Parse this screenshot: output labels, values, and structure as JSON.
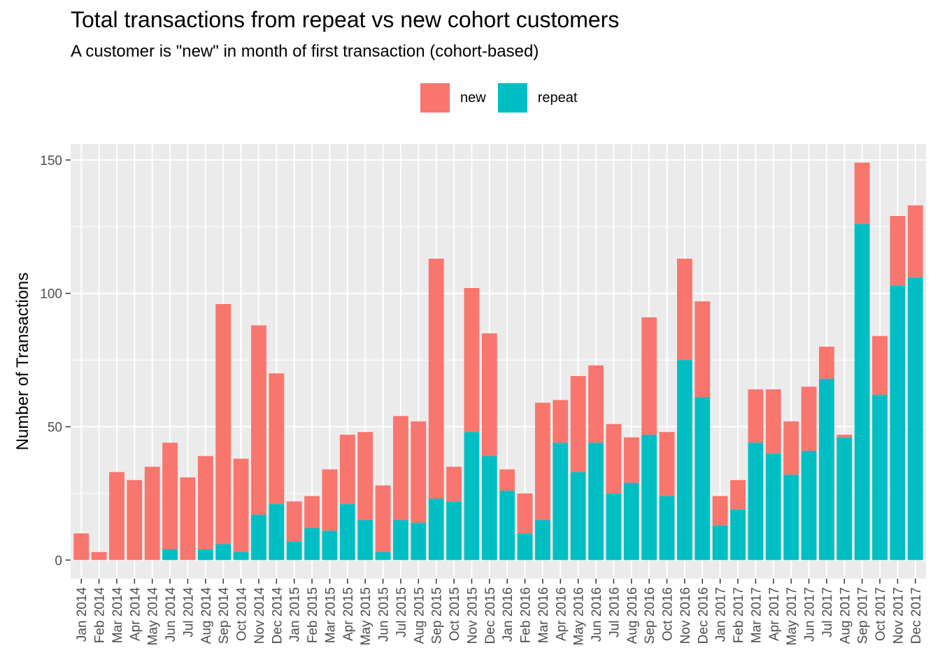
{
  "chart_data": {
    "type": "bar",
    "stacked": true,
    "title": "Total transactions from repeat vs new cohort customers",
    "subtitle": "A customer is \"new\" in month of first transaction (cohort-based)",
    "xlabel": "",
    "ylabel": "Number of Transactions",
    "ylim": [
      -7,
      156
    ],
    "yticks": [
      0,
      50,
      100,
      150
    ],
    "grid": true,
    "legend_position": "top",
    "categories": [
      "Jan 2014",
      "Feb 2014",
      "Mar 2014",
      "Apr 2014",
      "May 2014",
      "Jun 2014",
      "Jul 2014",
      "Aug 2014",
      "Sep 2014",
      "Oct 2014",
      "Nov 2014",
      "Dec 2014",
      "Jan 2015",
      "Feb 2015",
      "Mar 2015",
      "Apr 2015",
      "May 2015",
      "Jun 2015",
      "Jul 2015",
      "Aug 2015",
      "Sep 2015",
      "Oct 2015",
      "Nov 2015",
      "Dec 2015",
      "Jan 2016",
      "Feb 2016",
      "Mar 2016",
      "Apr 2016",
      "May 2016",
      "Jun 2016",
      "Jul 2016",
      "Aug 2016",
      "Sep 2016",
      "Oct 2016",
      "Nov 2016",
      "Dec 2016",
      "Jan 2017",
      "Feb 2017",
      "Mar 2017",
      "Apr 2017",
      "May 2017",
      "Jun 2017",
      "Jul 2017",
      "Aug 2017",
      "Sep 2017",
      "Oct 2017",
      "Nov 2017",
      "Dec 2017"
    ],
    "series": [
      {
        "name": "new",
        "color": "#F8766D",
        "values": [
          10,
          3,
          33,
          30,
          35,
          40,
          31,
          35,
          90,
          35,
          71,
          49,
          15,
          12,
          23,
          26,
          33,
          25,
          39,
          38,
          90,
          13,
          54,
          46,
          8,
          15,
          44,
          16,
          36,
          29,
          26,
          17,
          44,
          24,
          38,
          36,
          11,
          11,
          20,
          24,
          20,
          24,
          12,
          1,
          23,
          22,
          26,
          27
        ]
      },
      {
        "name": "repeat",
        "color": "#00BFC4",
        "values": [
          0,
          0,
          0,
          0,
          0,
          4,
          0,
          4,
          6,
          3,
          17,
          21,
          7,
          12,
          11,
          21,
          15,
          3,
          15,
          14,
          23,
          22,
          48,
          39,
          26,
          10,
          15,
          44,
          33,
          44,
          25,
          29,
          47,
          24,
          75,
          61,
          13,
          19,
          44,
          40,
          32,
          41,
          68,
          46,
          126,
          62,
          103,
          106
        ]
      }
    ]
  }
}
